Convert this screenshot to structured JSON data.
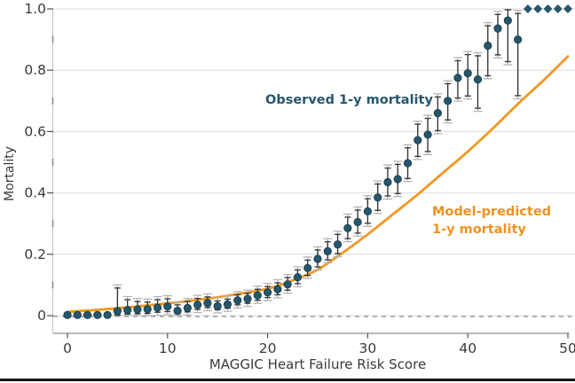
{
  "figure": {
    "y_axis_label": "Mortality",
    "x_axis_label": "MAGGIC Heart Failure Risk Score"
  },
  "annotations": {
    "observed": "Observed 1-y mortality",
    "predicted_line1": "Model-predicted",
    "predicted_line2": "1-y mortality"
  },
  "colors": {
    "observed_point": "#27566b",
    "observed_point_edge": "#16394a",
    "predicted_curve": "#f3981f",
    "ci_inner": "#333333",
    "ci_outer": "#b4b4b4",
    "gridline": "#dcdcdc",
    "zero_dash": "#909090",
    "x_axis": "#8f8f8f",
    "y_axis": "#c9c9c9",
    "tick": "#4f4f4f",
    "tick_text": "#3a3a3a"
  },
  "chart_data": {
    "type": "scatter",
    "title": "",
    "xlabel": "MAGGIC Heart Failure Risk Score",
    "ylabel": "Mortality",
    "xlim": [
      0,
      50
    ],
    "ylim": [
      0,
      1.0
    ],
    "x_ticks": [
      0,
      10,
      20,
      30,
      40,
      50
    ],
    "y_ticks": [
      0,
      0.2,
      0.4,
      0.6,
      0.8,
      1.0
    ],
    "y_tick_labels": [
      "0",
      "0.2",
      "0.4",
      "0.6",
      "0.8",
      "1.0"
    ],
    "y_minor_ticks": [
      0.1,
      0.3,
      0.5,
      0.7,
      0.9
    ],
    "grid": "horizontal-on",
    "zero_line": "dashed",
    "legend_position": "inline-annotations",
    "points_format": [
      "score",
      "mortality",
      "ci_low",
      "ci_high"
    ],
    "series": [
      {
        "name": "Observed 1-y mortality",
        "type": "scatter_with_ci",
        "marker_full_mortality": "diamond",
        "points": [
          [
            0,
            0.002,
            0.0,
            0.008
          ],
          [
            1,
            0.002,
            0.0,
            0.008
          ],
          [
            2,
            0.002,
            0.0,
            0.008
          ],
          [
            3,
            0.002,
            0.0,
            0.009
          ],
          [
            4,
            0.002,
            0.0,
            0.01
          ],
          [
            5,
            0.015,
            0.002,
            0.09
          ],
          [
            6,
            0.018,
            0.005,
            0.052
          ],
          [
            7,
            0.02,
            0.006,
            0.046
          ],
          [
            8,
            0.021,
            0.007,
            0.044
          ],
          [
            9,
            0.026,
            0.011,
            0.052
          ],
          [
            10,
            0.03,
            0.013,
            0.055
          ],
          [
            11,
            0.016,
            0.006,
            0.035
          ],
          [
            12,
            0.025,
            0.012,
            0.046
          ],
          [
            13,
            0.035,
            0.02,
            0.056
          ],
          [
            14,
            0.041,
            0.026,
            0.061
          ],
          [
            15,
            0.031,
            0.019,
            0.048
          ],
          [
            16,
            0.037,
            0.024,
            0.054
          ],
          [
            17,
            0.05,
            0.035,
            0.068
          ],
          [
            18,
            0.055,
            0.04,
            0.073
          ],
          [
            19,
            0.066,
            0.05,
            0.086
          ],
          [
            20,
            0.076,
            0.059,
            0.095
          ],
          [
            21,
            0.086,
            0.068,
            0.107
          ],
          [
            22,
            0.102,
            0.083,
            0.124
          ],
          [
            23,
            0.125,
            0.104,
            0.149
          ],
          [
            24,
            0.155,
            0.131,
            0.181
          ],
          [
            25,
            0.185,
            0.159,
            0.214
          ],
          [
            26,
            0.21,
            0.182,
            0.241
          ],
          [
            27,
            0.232,
            0.202,
            0.265
          ],
          [
            28,
            0.285,
            0.251,
            0.321
          ],
          [
            29,
            0.305,
            0.269,
            0.344
          ],
          [
            30,
            0.34,
            0.301,
            0.381
          ],
          [
            31,
            0.385,
            0.343,
            0.429
          ],
          [
            32,
            0.435,
            0.39,
            0.481
          ],
          [
            33,
            0.445,
            0.398,
            0.493
          ],
          [
            34,
            0.497,
            0.447,
            0.547
          ],
          [
            35,
            0.572,
            0.519,
            0.624
          ],
          [
            36,
            0.59,
            0.535,
            0.643
          ],
          [
            37,
            0.66,
            0.603,
            0.713
          ],
          [
            38,
            0.7,
            0.638,
            0.756
          ],
          [
            39,
            0.775,
            0.709,
            0.831
          ],
          [
            40,
            0.79,
            0.716,
            0.851
          ],
          [
            41,
            0.77,
            0.676,
            0.847
          ],
          [
            42,
            0.88,
            0.782,
            0.945
          ],
          [
            43,
            0.936,
            0.85,
            0.982
          ],
          [
            44,
            0.962,
            0.828,
            0.997
          ],
          [
            45,
            0.9,
            0.717,
            0.985
          ],
          [
            46,
            1,
            1,
            1
          ],
          [
            47,
            1,
            1,
            1
          ],
          [
            48,
            1,
            1,
            1
          ],
          [
            49,
            1,
            1,
            1
          ],
          [
            50,
            1,
            1,
            1
          ]
        ]
      },
      {
        "name": "Model-predicted 1-y mortality",
        "type": "line",
        "x": [
          0,
          5,
          10,
          15,
          20,
          22.5,
          25,
          27.5,
          30,
          32.5,
          35,
          37.5,
          40,
          42.5,
          45,
          47.5,
          50
        ],
        "y": [
          0.012,
          0.024,
          0.04,
          0.06,
          0.088,
          0.115,
          0.15,
          0.205,
          0.265,
          0.33,
          0.395,
          0.465,
          0.535,
          0.61,
          0.69,
          0.765,
          0.845
        ]
      }
    ]
  }
}
